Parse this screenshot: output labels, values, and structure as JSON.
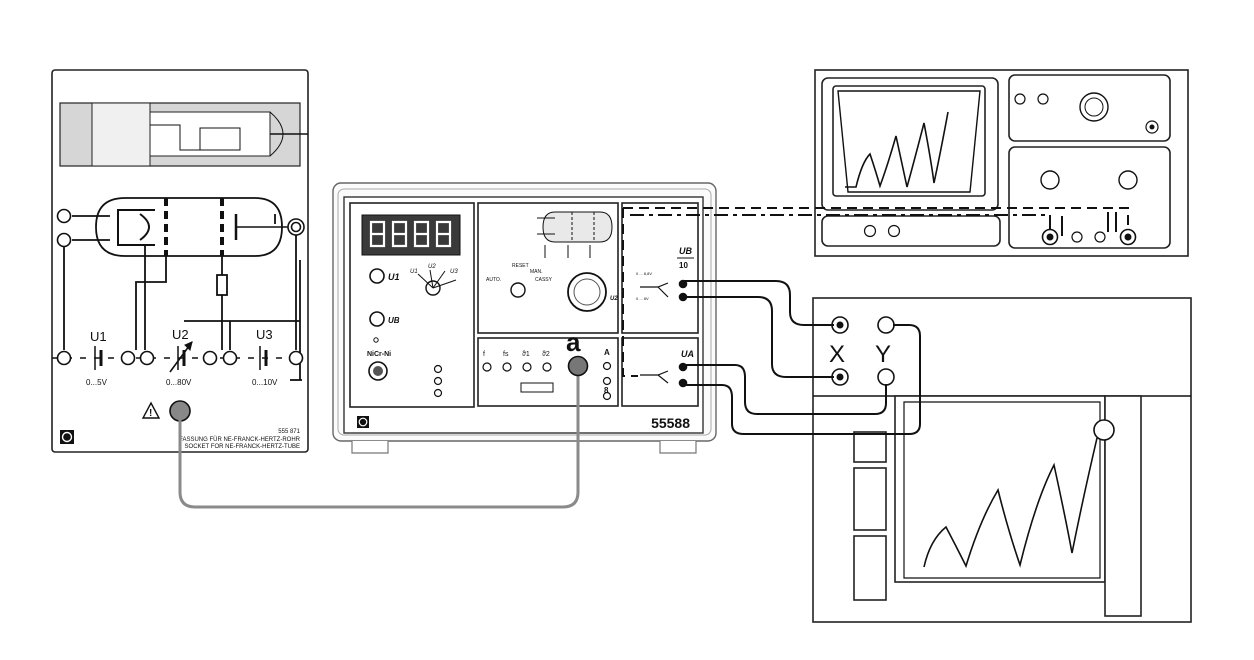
{
  "socket_panel": {
    "supply_labels": [
      "U1",
      "U2",
      "U3"
    ],
    "ranges": [
      "0...5V",
      "0...80V",
      "0...10V"
    ],
    "part_number": "555 871",
    "caption_de": "FASSUNG FÜR NE-FRANCK-HERTZ-ROHR",
    "caption_en": "SOCKET FOR NE-FRANCK-HERTZ-TUBE"
  },
  "control_unit": {
    "model": "55588",
    "label_u1": "U1",
    "label_ub": "UB",
    "label_u2": "U2",
    "label_u3": "U3",
    "label_nicrni": "NiCr-Ni",
    "label_reset": "RESET",
    "label_auto": "AUTO.",
    "label_man": "MAN.",
    "label_cassy": "CASSY",
    "label_ub_10": "UB",
    "label_10": "10",
    "label_ua": "UA",
    "range_low": "0 ... 8,8V",
    "range_high": "0 ... 8V",
    "socket_labels": [
      "f",
      "fs",
      "ϑ1",
      "ϑ2"
    ],
    "label_a": "A",
    "label_s": "8"
  },
  "annotation": "a",
  "recorder": {
    "x_label": "X",
    "y_label": "Y"
  },
  "colors": {
    "line": "#111111",
    "cable": "#8a8a8a",
    "jack": "#777777",
    "display_bg": "#3a3a3a",
    "display_fg": "#ffffff"
  }
}
